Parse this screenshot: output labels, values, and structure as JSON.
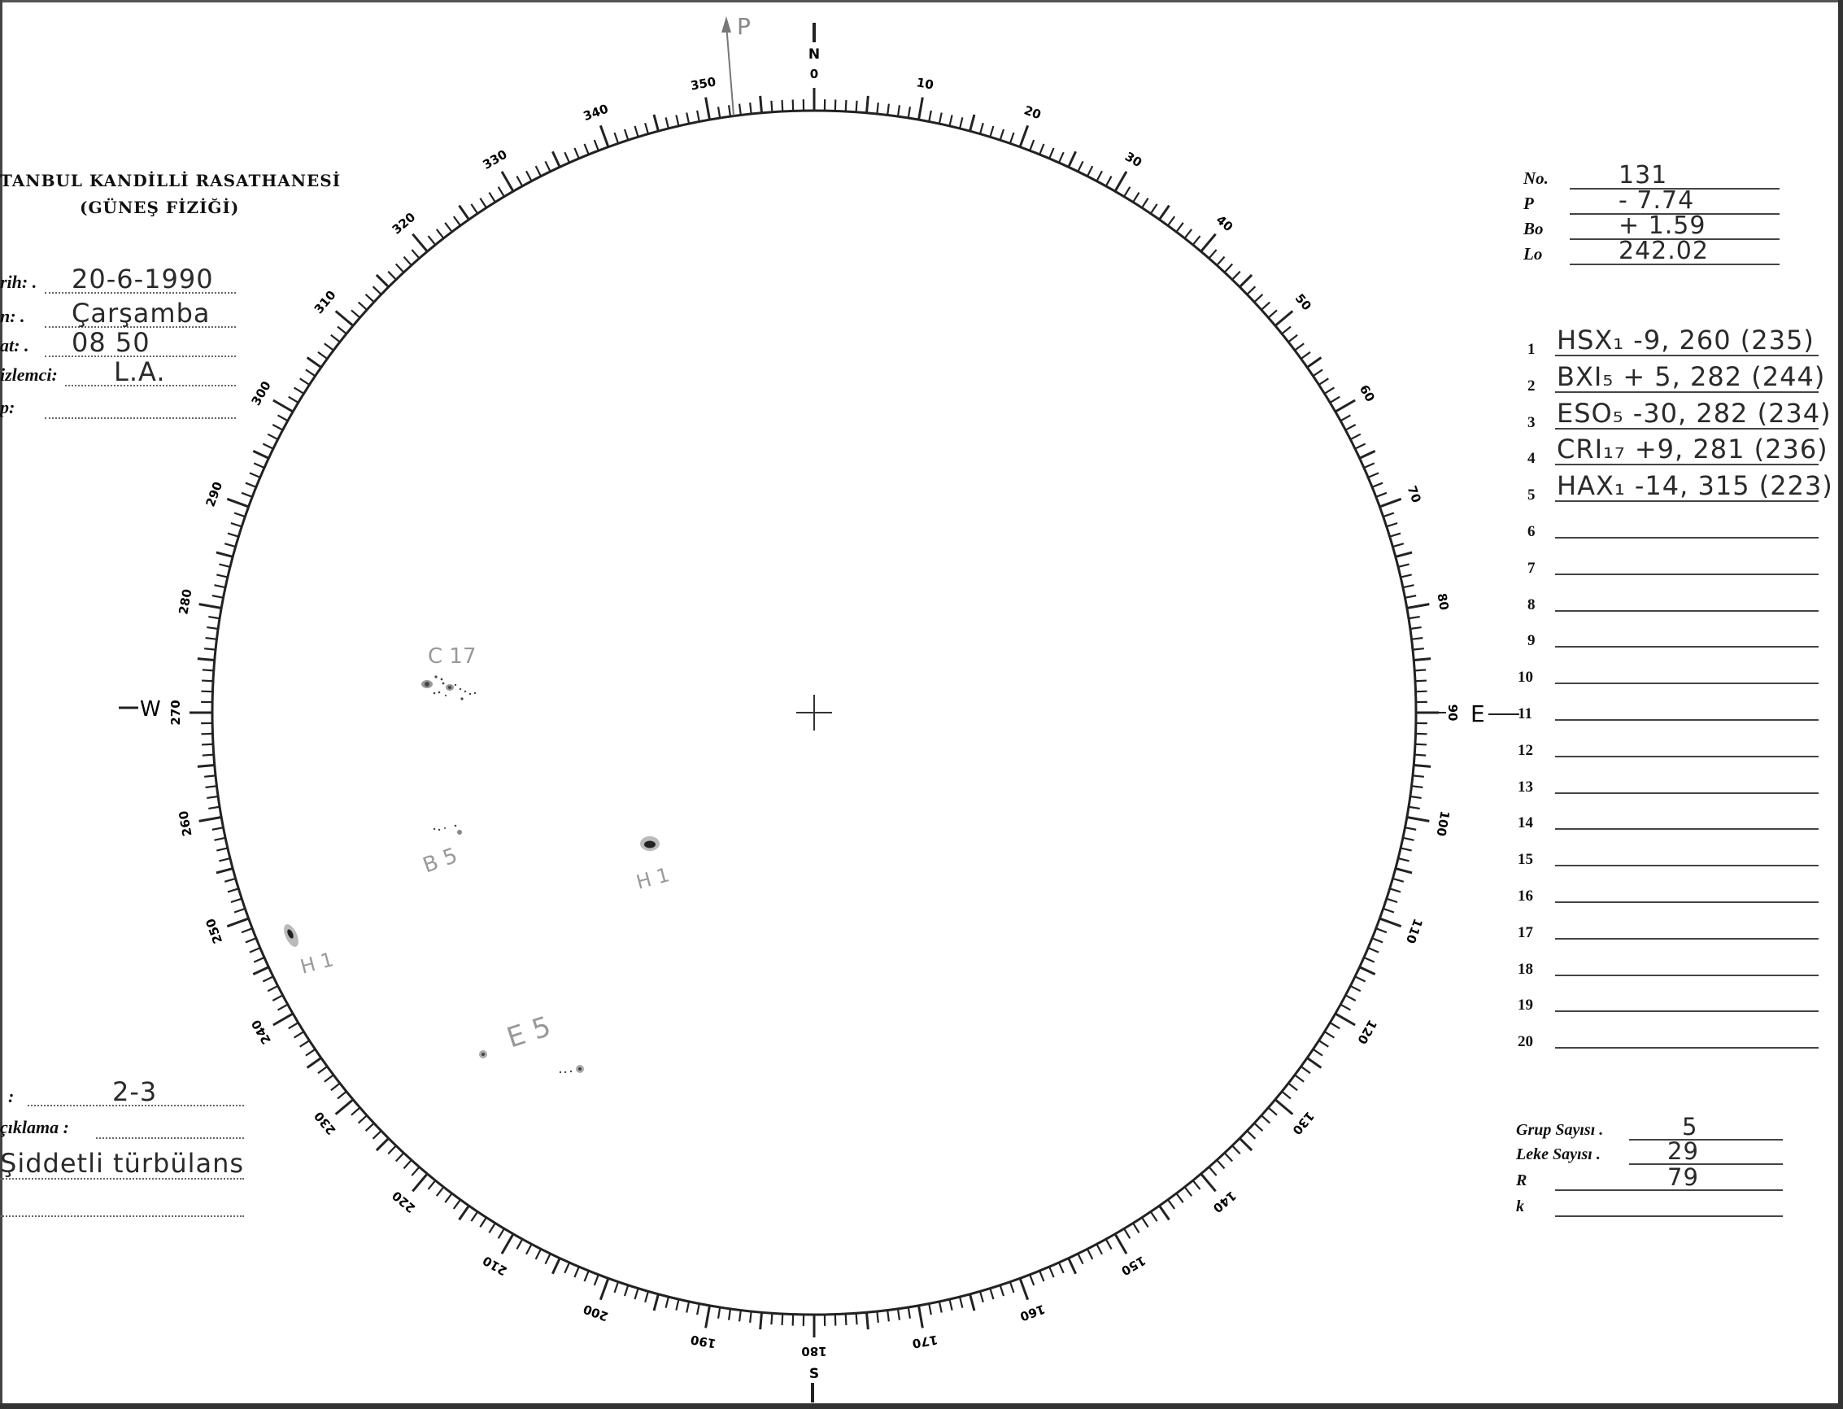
{
  "header": {
    "title": "TANBUL KANDİLLİ RASATHANESİ",
    "subtitle": "(GÜNEŞ FİZİĞİ)"
  },
  "left_fields": [
    {
      "label": "rih: .",
      "value": "20-6-1990"
    },
    {
      "label": "n: .",
      "value": "Çarşamba"
    },
    {
      "label": "at: .",
      "value": "08 50"
    },
    {
      "label": "izlemci:",
      "value": "L.A."
    },
    {
      "label": "p:",
      "value": ""
    }
  ],
  "bottom_left": {
    "seeing_label": ":",
    "seeing_value": "2-3",
    "remark_label": "çıklama :",
    "remark_value": "Şiddetli türbülans"
  },
  "ephemeris": [
    {
      "label": "No.",
      "value": "131"
    },
    {
      "label": "P",
      "value": "- 7.74"
    },
    {
      "label": "Bo",
      "value": "+ 1.59"
    },
    {
      "label": "Lo",
      "value": "242.02"
    }
  ],
  "groups": [
    {
      "n": "1",
      "text": "HSX₁ -9, 260 (235)"
    },
    {
      "n": "2",
      "text": "BXI₅ + 5, 282 (244)"
    },
    {
      "n": "3",
      "text": "ESO₅ -30, 282 (234)"
    },
    {
      "n": "4",
      "text": "CRI₁₇ +9, 281 (236)"
    },
    {
      "n": "5",
      "text": "HAX₁ -14, 315 (223)"
    },
    {
      "n": "6",
      "text": ""
    },
    {
      "n": "7",
      "text": ""
    },
    {
      "n": "8",
      "text": ""
    },
    {
      "n": "9",
      "text": ""
    },
    {
      "n": "10",
      "text": ""
    },
    {
      "n": "11",
      "text": ""
    },
    {
      "n": "12",
      "text": ""
    },
    {
      "n": "13",
      "text": ""
    },
    {
      "n": "14",
      "text": ""
    },
    {
      "n": "15",
      "text": ""
    },
    {
      "n": "16",
      "text": ""
    },
    {
      "n": "17",
      "text": ""
    },
    {
      "n": "18",
      "text": ""
    },
    {
      "n": "19",
      "text": ""
    },
    {
      "n": "20",
      "text": ""
    }
  ],
  "summary": [
    {
      "label": "Grup Sayısı .",
      "value": "5"
    },
    {
      "label": "Leke Sayısı .",
      "value": "29"
    },
    {
      "label": "R",
      "value": "79"
    },
    {
      "label": "k",
      "value": ""
    }
  ],
  "dial": {
    "degree_labels": [
      "0",
      "10",
      "20",
      "30",
      "40",
      "50",
      "60",
      "70",
      "80",
      "90",
      "100",
      "110",
      "120",
      "130",
      "140",
      "150",
      "160",
      "170",
      "180",
      "190",
      "200",
      "210",
      "220",
      "230",
      "240",
      "250",
      "260",
      "270",
      "280",
      "290",
      "300",
      "310",
      "320",
      "330",
      "340",
      "350"
    ],
    "north": "N",
    "south": "S",
    "east": "E",
    "west": "W",
    "p_marker": "P",
    "p_angle_deg": -7.74
  },
  "spot_labels": {
    "c": "C 17",
    "b": "B 5",
    "h_center": "H 1",
    "h_limb": "H 1",
    "e": "E 5"
  }
}
